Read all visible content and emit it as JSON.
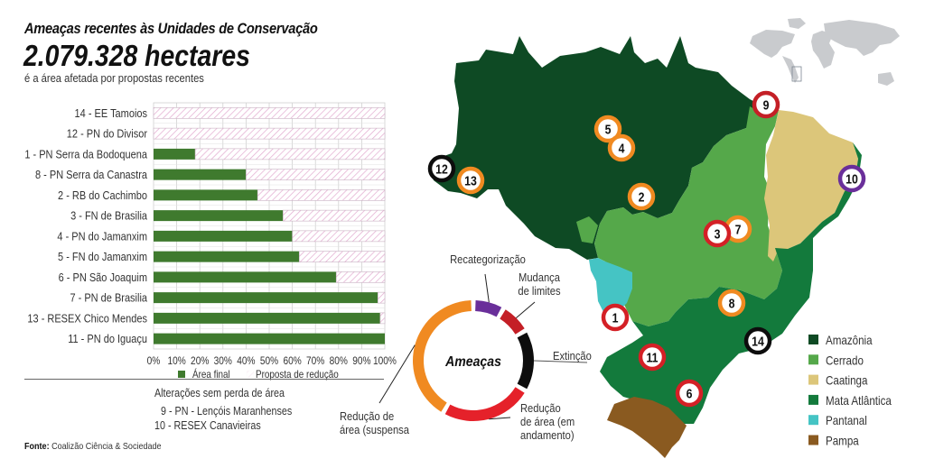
{
  "header": {
    "title": "Ameaças recentes às Unidades de Conservação",
    "headline": "2.079.328 hectares",
    "subtitle": "é a área afetada por propostas recentes"
  },
  "chart_data": [
    {
      "type": "bar",
      "orientation": "horizontal",
      "stacked": true,
      "categories": [
        "14 - EE Tamoios",
        "12 - PN do Divisor",
        "1 - PN Serra da Bodoquena",
        "8 - PN Serra da Canastra",
        "2 - RB do Cachimbo",
        "3 - FN de Brasilia",
        "4 -  PN do Jamanxim",
        "5 - FN do Jamanxim",
        "6 - PN São Joaquim",
        "7 - PN de Brasilia",
        "13 - RESEX Chico Mendes",
        "11 - PN do Iguaçu"
      ],
      "series": [
        {
          "name": "Área final",
          "color": "#3f7a2e",
          "values": [
            0,
            0,
            18,
            40,
            45,
            56,
            60,
            63,
            79,
            97,
            98,
            100
          ]
        },
        {
          "name": "Proposta de redução",
          "color": "#e8b8d8",
          "values": [
            100,
            100,
            82,
            60,
            55,
            44,
            40,
            37,
            21,
            3,
            2,
            0
          ]
        }
      ],
      "xlim": [
        0,
        100
      ],
      "xticks": [
        "0%",
        "10%",
        "20%",
        "30%",
        "40%",
        "50%",
        "60%",
        "70%",
        "80%",
        "90%",
        "100%"
      ],
      "grid": true,
      "legend": [
        "Área final",
        "Proposta de redução"
      ],
      "legend_position": "bottom"
    },
    {
      "type": "pie",
      "style": "donut",
      "center_label": "Ameaças",
      "labels": [
        "Recategorização",
        "Mudança de limites",
        "Extinção",
        "Redução de área (em andamento)",
        "Redução de área (suspensa"
      ],
      "label_lines": [
        [
          "Recategorização"
        ],
        [
          "Mudança",
          "de limites"
        ],
        [
          "Extinção"
        ],
        [
          "Redução",
          "de área (em",
          "andamento)"
        ],
        [
          "Redução de",
          "área (suspensa"
        ]
      ],
      "values": [
        1,
        1,
        2,
        3,
        5
      ],
      "colors": [
        "#6a2f9a",
        "#c41f26",
        "#0d0d0d",
        "#e5212a",
        "#f08a21"
      ]
    }
  ],
  "notes": {
    "title": "Alterações sem perda de área",
    "items": [
      "9 - PN - Lençóis Maranhenses",
      "10 - RESEX Canavieiras"
    ]
  },
  "source": {
    "label": "Fonte:",
    "text": "Coalizão Ciência & Sociedade"
  },
  "map": {
    "legend": [
      {
        "name": "Amazônia",
        "color": "#0e4a24"
      },
      {
        "name": "Cerrado",
        "color": "#55a84a"
      },
      {
        "name": "Caatinga",
        "color": "#dcc67a"
      },
      {
        "name": "Mata Atlântica",
        "color": "#137a3c"
      },
      {
        "name": "Pantanal",
        "color": "#45c4c4"
      },
      {
        "name": "Pampa",
        "color": "#8a5a20"
      }
    ],
    "markers": [
      {
        "id": "1",
        "ring": "#d42026"
      },
      {
        "id": "2",
        "ring": "#f08a21"
      },
      {
        "id": "3",
        "ring": "#d42026"
      },
      {
        "id": "4",
        "ring": "#f08a21"
      },
      {
        "id": "5",
        "ring": "#f08a21"
      },
      {
        "id": "6",
        "ring": "#d42026"
      },
      {
        "id": "7",
        "ring": "#f08a21"
      },
      {
        "id": "8",
        "ring": "#f08a21"
      },
      {
        "id": "9",
        "ring": "#c41f26"
      },
      {
        "id": "10",
        "ring": "#6a2f9a"
      },
      {
        "id": "11",
        "ring": "#d42026"
      },
      {
        "id": "12",
        "ring": "#0d0d0d"
      },
      {
        "id": "13",
        "ring": "#f08a21"
      },
      {
        "id": "14",
        "ring": "#0d0d0d"
      }
    ]
  }
}
